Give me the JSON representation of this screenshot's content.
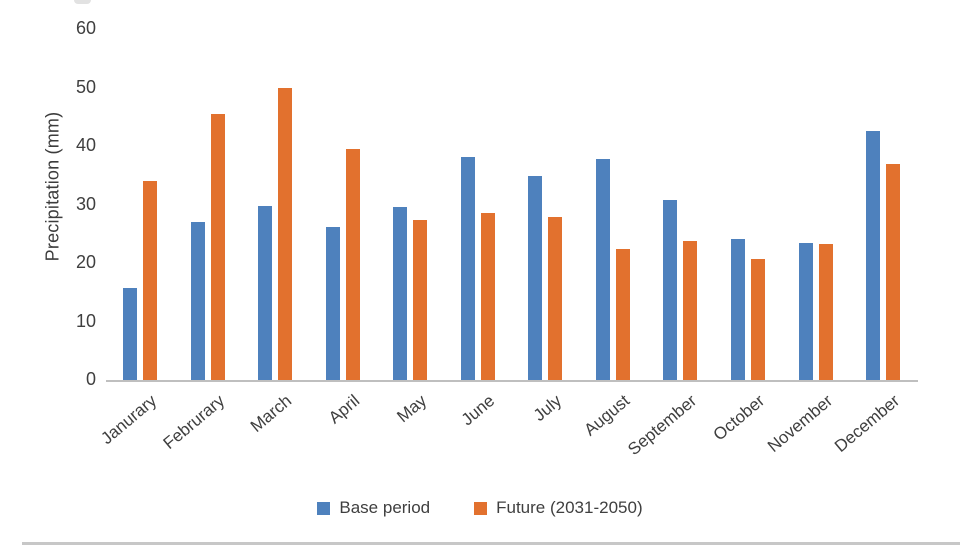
{
  "chart_data": {
    "type": "bar",
    "title": "",
    "categories": [
      "Janurary",
      "Februrary",
      "March",
      "April",
      "May",
      "June",
      "July",
      "August",
      "September",
      "October",
      "November",
      "December"
    ],
    "series": [
      {
        "name": "Base period",
        "color": "#4e81bd",
        "values": [
          15.8,
          27.0,
          29.8,
          26.2,
          29.6,
          38.2,
          34.9,
          37.7,
          30.7,
          24.1,
          23.5,
          42.5
        ]
      },
      {
        "name": "Future (2031-2050)",
        "color": "#e2712e",
        "values": [
          34.1,
          45.4,
          50.0,
          39.5,
          27.3,
          28.6,
          27.9,
          22.4,
          23.7,
          20.7,
          23.3,
          36.9
        ]
      }
    ],
    "xlabel": "",
    "ylabel": "Precipitation (mm)",
    "ylim": [
      0,
      60
    ],
    "yticks": [
      0,
      10,
      20,
      30,
      40,
      50,
      60
    ],
    "grid": false,
    "legend_position": "bottom",
    "axis_line_color": "#bfbfbf"
  },
  "legend": {
    "items": [
      {
        "label": "Base period",
        "color": "#4e81bd"
      },
      {
        "label": "Future (2031-2050)",
        "color": "#e2712e"
      }
    ]
  },
  "colors": {
    "background": "#ffffff",
    "text": "#3f3f3f",
    "base_period": "#4e81bd",
    "future": "#e2712e"
  }
}
